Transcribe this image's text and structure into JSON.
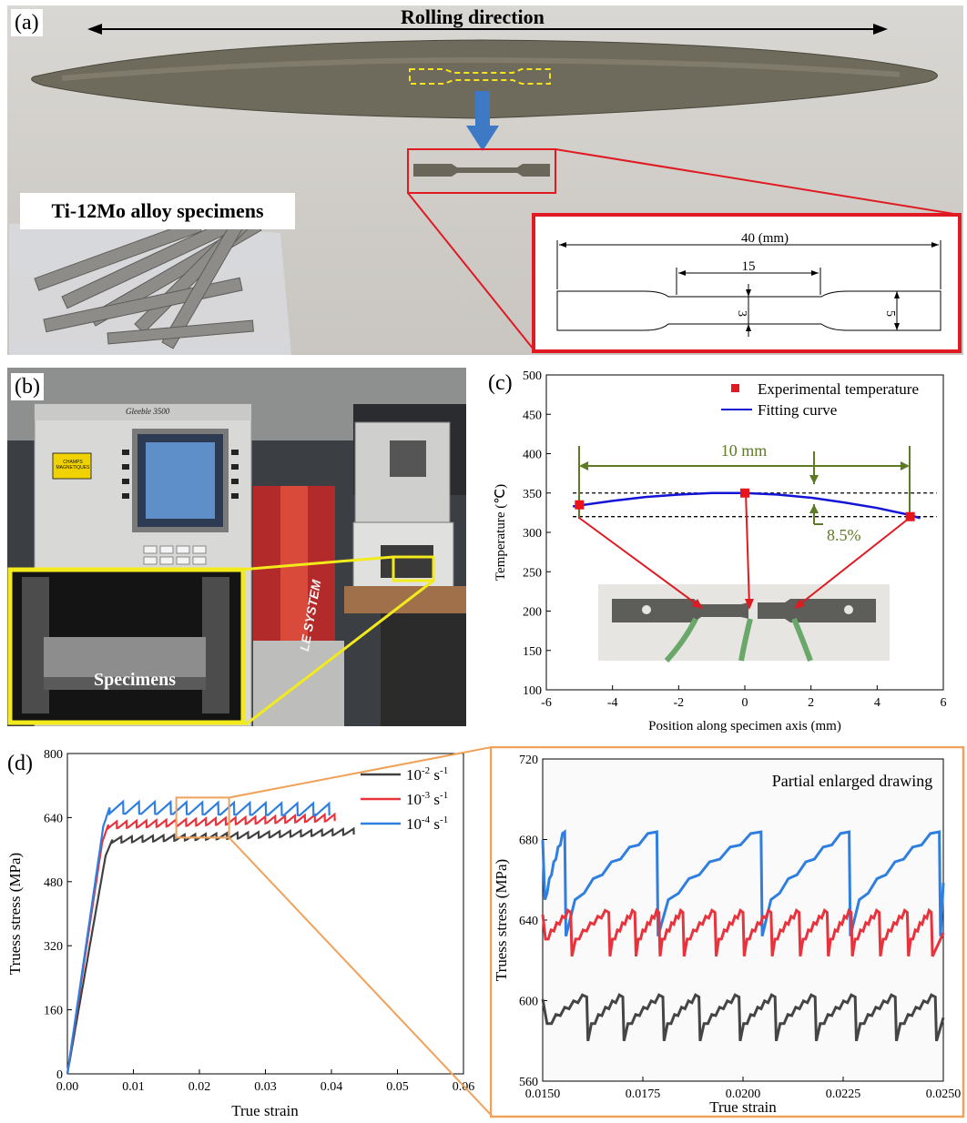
{
  "panel_a": {
    "label": "(a)",
    "rolling_direction": "Rolling direction",
    "specimens_label": "Ti-12Mo alloy specimens",
    "drawing": {
      "total": "40 (mm)",
      "gauge": "15",
      "width_gauge": "3",
      "width_grip": "5"
    }
  },
  "panel_b": {
    "label": "(b)",
    "machine_name": "Gleeble 3500",
    "warning": "CHAMPS MAGNETIQUES",
    "system_text": "LE SYSTEM",
    "inset_label": "Specimens"
  },
  "panel_c": {
    "label": "(c)",
    "dimension_label": "10 mm",
    "percent_label": "8.5%",
    "chart_data": {
      "type": "scatter",
      "xlabel": "Position along specimen axis (mm)",
      "ylabel": "Temperature (℃)",
      "xlim": [
        -6,
        6
      ],
      "ylim": [
        100,
        500
      ],
      "xticks": [
        "-6",
        "-4",
        "-2",
        "0",
        "2",
        "4",
        "6"
      ],
      "yticks": [
        "100",
        "150",
        "200",
        "250",
        "300",
        "350",
        "400",
        "450",
        "500"
      ],
      "legend_position": "top-right",
      "series": [
        {
          "name": "Experimental temperature",
          "color": "#e8141a",
          "x": [
            -5,
            0,
            5
          ],
          "y": [
            335,
            350,
            320
          ]
        },
        {
          "name": "Fitting curve",
          "color": "#1414d6",
          "x": [
            -5.2,
            -4,
            -3,
            -2,
            -1,
            -0.5,
            0,
            1,
            2,
            3,
            4,
            5,
            5.3
          ],
          "y": [
            333,
            340,
            345,
            348,
            350,
            350,
            350,
            348,
            344,
            338,
            331,
            322,
            318
          ]
        }
      ],
      "reference_lines": [
        350,
        320
      ]
    }
  },
  "panel_d": {
    "label": "(d)",
    "chart_data": {
      "type": "line",
      "xlabel": "True strain",
      "ylabel": "Truess stress (MPa)",
      "xlim": [
        0,
        0.06
      ],
      "ylim": [
        0,
        800
      ],
      "xticks": [
        "0.00",
        "0.01",
        "0.02",
        "0.03",
        "0.04",
        "0.05",
        "0.06"
      ],
      "yticks": [
        "0",
        "160",
        "320",
        "480",
        "640",
        "800"
      ],
      "legend_position": "top-right",
      "series": [
        {
          "name": "10-2 s-1",
          "name_base": "10",
          "name_exp": "-2",
          "name_unit": " s",
          "name_unit_exp": "-1",
          "color": "#404040",
          "yield_strain": 0.0068,
          "plateau": 585,
          "final": 605,
          "end_strain": 0.042,
          "period": 0.0016,
          "amp": 12
        },
        {
          "name": "10-3 s-1",
          "name_base": "10",
          "name_exp": "-3",
          "name_unit": " s",
          "name_unit_exp": "-1",
          "color": "#e8323c",
          "yield_strain": 0.0062,
          "plateau": 622,
          "final": 640,
          "end_strain": 0.0395,
          "period": 0.0015,
          "amp": 14
        },
        {
          "name": "10-4 s-1",
          "name_base": "10",
          "name_exp": "-4",
          "name_unit": " s",
          "name_unit_exp": "-1",
          "color": "#2f7fe0",
          "yield_strain": 0.0064,
          "plateau": 665,
          "final": 660,
          "end_strain": 0.0395,
          "period": 0.0024,
          "amp": 25
        }
      ],
      "zoom_box": {
        "x": [
          0.0165,
          0.0245
        ],
        "y": [
          590,
          690
        ]
      }
    }
  },
  "panel_e": {
    "annotation": "Partial enlarged drawing",
    "chart_data": {
      "type": "line",
      "xlabel": "True strain",
      "ylabel": "Truess stress (MPa)",
      "xlim": [
        0.015,
        0.025
      ],
      "ylim": [
        560,
        720
      ],
      "xticks": [
        "0.0150",
        "0.0175",
        "0.0200",
        "0.0225",
        "0.0250"
      ],
      "yticks": [
        "560",
        "600",
        "640",
        "680",
        "720"
      ],
      "series": [
        {
          "name": "10-4 s-1",
          "color": "#2f7fe0",
          "drops": [
            0.01555,
            0.01785,
            0.02045,
            0.02265,
            0.0249
          ],
          "top": 685,
          "bottom": 632
        },
        {
          "name": "10-3 s-1",
          "color": "#e8323c",
          "drops": [
            0.0157,
            0.01665,
            0.0173,
            0.0179,
            0.0185,
            0.0193,
            0.02,
            0.0207,
            0.0214,
            0.0221,
            0.0227,
            0.0234,
            0.0241,
            0.0247
          ],
          "top": 645,
          "bottom": 622
        },
        {
          "name": "10-2 s-1",
          "color": "#454545",
          "drops": [
            0.0161,
            0.017,
            0.018,
            0.0189,
            0.0199,
            0.0208,
            0.0218,
            0.0228,
            0.0238,
            0.0248
          ],
          "top": 603,
          "bottom": 580
        }
      ]
    }
  }
}
